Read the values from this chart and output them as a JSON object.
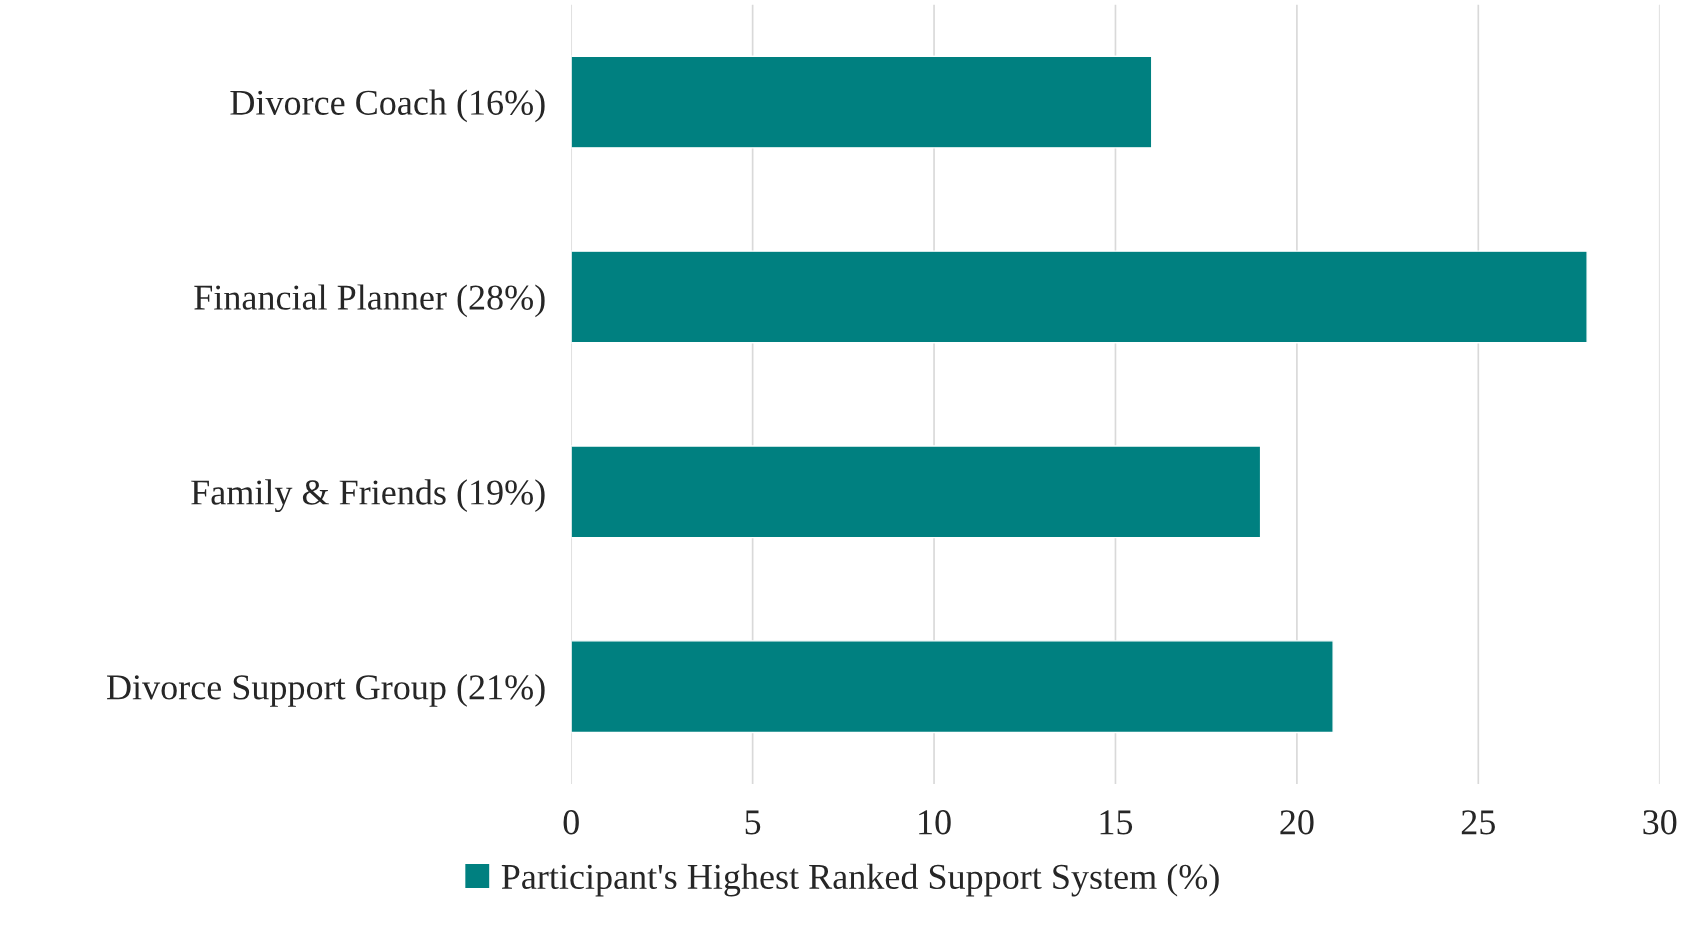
{
  "chart_data": {
    "type": "bar",
    "orientation": "horizontal",
    "categories": [
      "Divorce Coach (16%)",
      "Financial Planner (28%)",
      "Family & Friends (19%)",
      "Divorce Support Group (21%)"
    ],
    "series": [
      {
        "name": "Participant's Highest Ranked Support System (%)",
        "color": "#008080",
        "values": [
          16,
          28,
          19,
          21
        ]
      }
    ],
    "xlim": [
      0,
      30
    ],
    "xticks": [
      0,
      5,
      10,
      15,
      20,
      25,
      30
    ],
    "grid": "x",
    "legend": "bottom"
  }
}
